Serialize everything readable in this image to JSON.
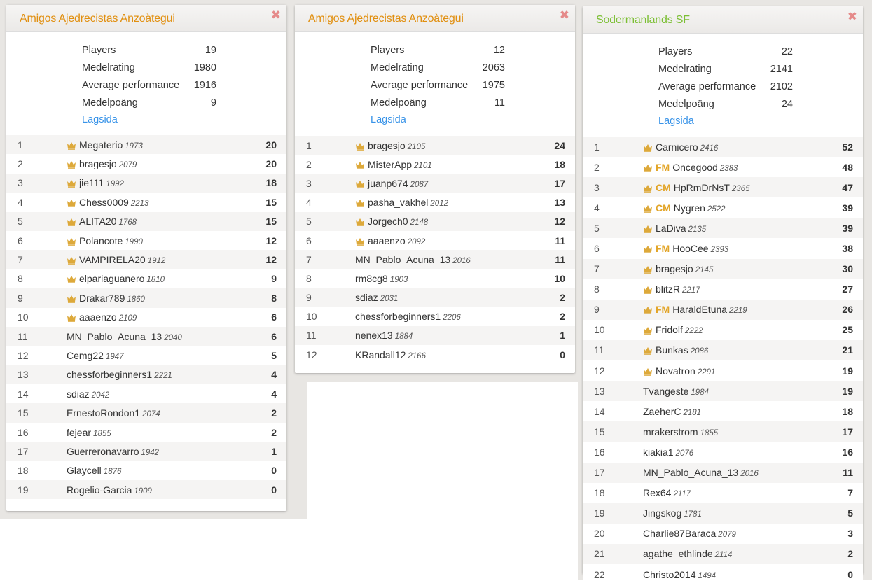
{
  "colors": {
    "title_orange": "#e18f0f",
    "title_green": "#7cbf34",
    "crown": "#dda93a",
    "link": "#3893e8",
    "close": "#e58a8a"
  },
  "icons": {
    "close": "close-icon",
    "crown": "crown-icon"
  },
  "panels": [
    {
      "title": "Amigos Ajedrecistas Anzoàtegui",
      "title_color": "#e18f0f",
      "close": "✖",
      "stats": [
        {
          "label": "Players",
          "value": "19"
        },
        {
          "label": "Medelrating",
          "value": "1980"
        },
        {
          "label": "Average performance",
          "value": "1916"
        },
        {
          "label": "Medelpoäng",
          "value": "9"
        }
      ],
      "link": "Lagsida",
      "players": [
        {
          "rank": "1",
          "crown": true,
          "title": "",
          "name": "Megaterio",
          "rating": "1973",
          "score": "20"
        },
        {
          "rank": "2",
          "crown": true,
          "title": "",
          "name": "bragesjo",
          "rating": "2079",
          "score": "20"
        },
        {
          "rank": "3",
          "crown": true,
          "title": "",
          "name": "jie111",
          "rating": "1992",
          "score": "18"
        },
        {
          "rank": "4",
          "crown": true,
          "title": "",
          "name": "Chess0009",
          "rating": "2213",
          "score": "15"
        },
        {
          "rank": "5",
          "crown": true,
          "title": "",
          "name": "ALITA20",
          "rating": "1768",
          "score": "15"
        },
        {
          "rank": "6",
          "crown": true,
          "title": "",
          "name": "Polancote",
          "rating": "1990",
          "score": "12"
        },
        {
          "rank": "7",
          "crown": true,
          "title": "",
          "name": "VAMPIRELA20",
          "rating": "1912",
          "score": "12"
        },
        {
          "rank": "8",
          "crown": true,
          "title": "",
          "name": "elpariaguanero",
          "rating": "1810",
          "score": "9"
        },
        {
          "rank": "9",
          "crown": true,
          "title": "",
          "name": "Drakar789",
          "rating": "1860",
          "score": "8"
        },
        {
          "rank": "10",
          "crown": true,
          "title": "",
          "name": "aaaenzo",
          "rating": "2109",
          "score": "6"
        },
        {
          "rank": "11",
          "crown": false,
          "title": "",
          "name": "MN_Pablo_Acuna_13",
          "rating": "2040",
          "score": "6"
        },
        {
          "rank": "12",
          "crown": false,
          "title": "",
          "name": "Cemg22",
          "rating": "1947",
          "score": "5"
        },
        {
          "rank": "13",
          "crown": false,
          "title": "",
          "name": "chessforbeginners1",
          "rating": "2221",
          "score": "4"
        },
        {
          "rank": "14",
          "crown": false,
          "title": "",
          "name": "sdiaz",
          "rating": "2042",
          "score": "4"
        },
        {
          "rank": "15",
          "crown": false,
          "title": "",
          "name": "ErnestoRondon1",
          "rating": "2074",
          "score": "2"
        },
        {
          "rank": "16",
          "crown": false,
          "title": "",
          "name": "fejear",
          "rating": "1855",
          "score": "2"
        },
        {
          "rank": "17",
          "crown": false,
          "title": "",
          "name": "Guerreronavarro",
          "rating": "1942",
          "score": "1"
        },
        {
          "rank": "18",
          "crown": false,
          "title": "",
          "name": "Glaycell",
          "rating": "1876",
          "score": "0"
        },
        {
          "rank": "19",
          "crown": false,
          "title": "",
          "name": "Rogelio-Garcia",
          "rating": "1909",
          "score": "0"
        }
      ]
    },
    {
      "title": "Amigos Ajedrecistas Anzoàtegui",
      "title_color": "#e18f0f",
      "close": "✖",
      "stats": [
        {
          "label": "Players",
          "value": "12"
        },
        {
          "label": "Medelrating",
          "value": "2063"
        },
        {
          "label": "Average performance",
          "value": "1975"
        },
        {
          "label": "Medelpoäng",
          "value": "11"
        }
      ],
      "link": "Lagsida",
      "players": [
        {
          "rank": "1",
          "crown": true,
          "title": "",
          "name": "bragesjo",
          "rating": "2105",
          "score": "24"
        },
        {
          "rank": "2",
          "crown": true,
          "title": "",
          "name": "MisterApp",
          "rating": "2101",
          "score": "18"
        },
        {
          "rank": "3",
          "crown": true,
          "title": "",
          "name": "juanp674",
          "rating": "2087",
          "score": "17"
        },
        {
          "rank": "4",
          "crown": true,
          "title": "",
          "name": "pasha_vakhel",
          "rating": "2012",
          "score": "13"
        },
        {
          "rank": "5",
          "crown": true,
          "title": "",
          "name": "Jorgech0",
          "rating": "2148",
          "score": "12"
        },
        {
          "rank": "6",
          "crown": true,
          "title": "",
          "name": "aaaenzo",
          "rating": "2092",
          "score": "11"
        },
        {
          "rank": "7",
          "crown": false,
          "title": "",
          "name": "MN_Pablo_Acuna_13",
          "rating": "2016",
          "score": "11"
        },
        {
          "rank": "8",
          "crown": false,
          "title": "",
          "name": "rm8cg8",
          "rating": "1903",
          "score": "10"
        },
        {
          "rank": "9",
          "crown": false,
          "title": "",
          "name": "sdiaz",
          "rating": "2031",
          "score": "2"
        },
        {
          "rank": "10",
          "crown": false,
          "title": "",
          "name": "chessforbeginners1",
          "rating": "2206",
          "score": "2"
        },
        {
          "rank": "11",
          "crown": false,
          "title": "",
          "name": "nenex13",
          "rating": "1884",
          "score": "1"
        },
        {
          "rank": "12",
          "crown": false,
          "title": "",
          "name": "KRandall12",
          "rating": "2166",
          "score": "0"
        }
      ]
    },
    {
      "title": "Sodermanlands SF",
      "title_color": "#7cbf34",
      "close": "✖",
      "stats": [
        {
          "label": "Players",
          "value": "22"
        },
        {
          "label": "Medelrating",
          "value": "2141"
        },
        {
          "label": "Average performance",
          "value": "2102"
        },
        {
          "label": "Medelpoäng",
          "value": "24"
        }
      ],
      "link": "Lagsida",
      "players": [
        {
          "rank": "1",
          "crown": true,
          "title": "",
          "name": "Carnicero",
          "rating": "2416",
          "score": "52"
        },
        {
          "rank": "2",
          "crown": true,
          "title": "FM",
          "name": "Oncegood",
          "rating": "2383",
          "score": "48"
        },
        {
          "rank": "3",
          "crown": true,
          "title": "CM",
          "name": "HpRmDrNsT",
          "rating": "2365",
          "score": "47"
        },
        {
          "rank": "4",
          "crown": true,
          "title": "CM",
          "name": "Nygren",
          "rating": "2522",
          "score": "39"
        },
        {
          "rank": "5",
          "crown": true,
          "title": "",
          "name": "LaDiva",
          "rating": "2135",
          "score": "39"
        },
        {
          "rank": "6",
          "crown": true,
          "title": "FM",
          "name": "HooCee",
          "rating": "2393",
          "score": "38"
        },
        {
          "rank": "7",
          "crown": true,
          "title": "",
          "name": "bragesjo",
          "rating": "2145",
          "score": "30"
        },
        {
          "rank": "8",
          "crown": true,
          "title": "",
          "name": "blitzR",
          "rating": "2217",
          "score": "27"
        },
        {
          "rank": "9",
          "crown": true,
          "title": "FM",
          "name": "HaraldEtuna",
          "rating": "2219",
          "score": "26"
        },
        {
          "rank": "10",
          "crown": true,
          "title": "",
          "name": "Fridolf",
          "rating": "2222",
          "score": "25"
        },
        {
          "rank": "11",
          "crown": true,
          "title": "",
          "name": "Bunkas",
          "rating": "2086",
          "score": "21"
        },
        {
          "rank": "12",
          "crown": true,
          "title": "",
          "name": "Novatron",
          "rating": "2291",
          "score": "19"
        },
        {
          "rank": "13",
          "crown": false,
          "title": "",
          "name": "Tvangeste",
          "rating": "1984",
          "score": "19"
        },
        {
          "rank": "14",
          "crown": false,
          "title": "",
          "name": "ZaeherC",
          "rating": "2181",
          "score": "18"
        },
        {
          "rank": "15",
          "crown": false,
          "title": "",
          "name": "mrakerstrom",
          "rating": "1855",
          "score": "17"
        },
        {
          "rank": "16",
          "crown": false,
          "title": "",
          "name": "kiakia1",
          "rating": "2076",
          "score": "16"
        },
        {
          "rank": "17",
          "crown": false,
          "title": "",
          "name": "MN_Pablo_Acuna_13",
          "rating": "2016",
          "score": "11"
        },
        {
          "rank": "18",
          "crown": false,
          "title": "",
          "name": "Rex64",
          "rating": "2117",
          "score": "7"
        },
        {
          "rank": "19",
          "crown": false,
          "title": "",
          "name": "Jingskog",
          "rating": "1781",
          "score": "5"
        },
        {
          "rank": "20",
          "crown": false,
          "title": "",
          "name": "Charlie87Baraca",
          "rating": "2079",
          "score": "3"
        },
        {
          "rank": "21",
          "crown": false,
          "title": "",
          "name": "agathe_ethlinde",
          "rating": "2114",
          "score": "2"
        },
        {
          "rank": "22",
          "crown": false,
          "title": "",
          "name": "Christo2014",
          "rating": "1494",
          "score": "0"
        }
      ]
    }
  ]
}
